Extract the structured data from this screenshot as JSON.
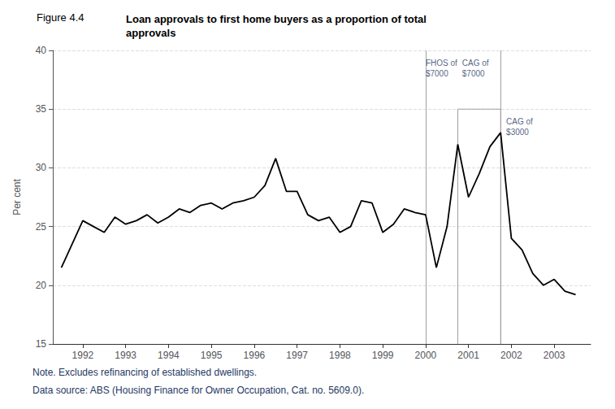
{
  "chart_data": {
    "type": "line",
    "figure_label": "Figure 4.4",
    "title": "Loan approvals to first home buyers as a proportion of total\napprovals",
    "title_color": "#000000",
    "ylabel": "Per cent",
    "x": [
      1991.5,
      1992.0,
      1992.25,
      1992.5,
      1992.75,
      1993.0,
      1993.25,
      1993.5,
      1993.75,
      1994.0,
      1994.25,
      1994.5,
      1994.75,
      1995.0,
      1995.25,
      1995.5,
      1995.75,
      1996.0,
      1996.25,
      1996.5,
      1996.75,
      1997.0,
      1997.25,
      1997.5,
      1997.75,
      1998.0,
      1998.25,
      1998.5,
      1998.75,
      1999.0,
      1999.25,
      1999.5,
      1999.75,
      2000.0,
      2000.25,
      2000.5,
      2000.75,
      2001.0,
      2001.25,
      2001.5,
      2001.75,
      2002.0,
      2002.25,
      2002.5,
      2002.75,
      2003.0,
      2003.25,
      2003.5
    ],
    "values": [
      21.5,
      25.5,
      25.0,
      24.5,
      25.8,
      25.2,
      25.5,
      26.0,
      25.3,
      25.8,
      26.5,
      26.2,
      26.8,
      27.0,
      26.5,
      27.0,
      27.2,
      27.5,
      28.5,
      30.8,
      28.0,
      28.0,
      26.0,
      25.5,
      25.8,
      24.5,
      25.0,
      27.2,
      27.0,
      24.5,
      25.2,
      26.5,
      26.2,
      26.0,
      21.5,
      25.0,
      32.0,
      27.5,
      29.5,
      31.8,
      33.0,
      24.0,
      23.0,
      21.0,
      20.0,
      20.5,
      19.5,
      19.2
    ],
    "color": "#000000",
    "xlim": [
      1991.3,
      2003.85
    ],
    "xticks": [
      1992,
      1993,
      1994,
      1995,
      1996,
      1997,
      1998,
      1999,
      2000,
      2001,
      2002,
      2003
    ],
    "ylim": [
      15,
      40
    ],
    "yticks": [
      15,
      20,
      25,
      30,
      35,
      40
    ],
    "grid": true,
    "reference_lines": {
      "color": "#a0a0a0",
      "x": [
        2000.0,
        2001.75
      ],
      "box": {
        "x": [
          2000.75,
          2001.75
        ],
        "top": 35.0
      }
    },
    "annotations": {
      "color": "#1f3864",
      "items": [
        {
          "text": "FHOS of\n$7000",
          "x": 2000.0,
          "y": 38.5
        },
        {
          "text": "CAG of\n$7000",
          "x": 2000.85,
          "y": 38.5
        },
        {
          "text": "CAG of\n$3000",
          "x": 2001.88,
          "y": 33.5
        }
      ]
    },
    "footnotes": {
      "color": "#1f3864",
      "lines": [
        "Note. Excludes refinancing of established dwellings.",
        "Data source: ABS (Housing Finance for Owner Occupation, Cat. no. 5609.0)."
      ]
    }
  }
}
